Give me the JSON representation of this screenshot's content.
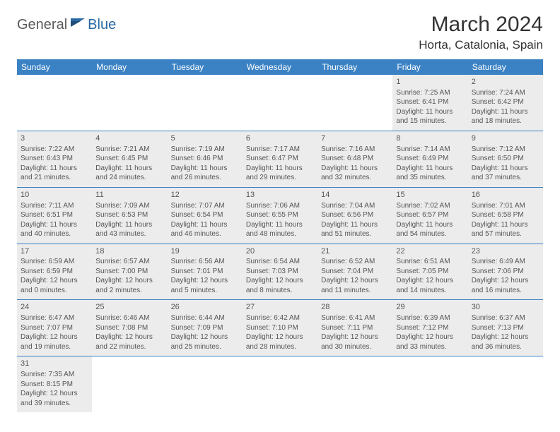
{
  "logo": {
    "part1": "General",
    "part2": "Blue"
  },
  "title": "March 2024",
  "location": "Horta, Catalonia, Spain",
  "colors": {
    "header_bg": "#3b82c4",
    "header_text": "#ffffff",
    "shaded_bg": "#ececec",
    "row_border": "#3b82c4",
    "logo_gray": "#5a5a5a",
    "logo_blue": "#2968a3",
    "text": "#444444"
  },
  "weekdays": [
    "Sunday",
    "Monday",
    "Tuesday",
    "Wednesday",
    "Thursday",
    "Friday",
    "Saturday"
  ],
  "weeks": [
    [
      null,
      null,
      null,
      null,
      null,
      {
        "d": "1",
        "sr": "Sunrise: 7:25 AM",
        "ss": "Sunset: 6:41 PM",
        "dl1": "Daylight: 11 hours",
        "dl2": "and 15 minutes."
      },
      {
        "d": "2",
        "sr": "Sunrise: 7:24 AM",
        "ss": "Sunset: 6:42 PM",
        "dl1": "Daylight: 11 hours",
        "dl2": "and 18 minutes."
      }
    ],
    [
      {
        "d": "3",
        "sr": "Sunrise: 7:22 AM",
        "ss": "Sunset: 6:43 PM",
        "dl1": "Daylight: 11 hours",
        "dl2": "and 21 minutes."
      },
      {
        "d": "4",
        "sr": "Sunrise: 7:21 AM",
        "ss": "Sunset: 6:45 PM",
        "dl1": "Daylight: 11 hours",
        "dl2": "and 24 minutes."
      },
      {
        "d": "5",
        "sr": "Sunrise: 7:19 AM",
        "ss": "Sunset: 6:46 PM",
        "dl1": "Daylight: 11 hours",
        "dl2": "and 26 minutes."
      },
      {
        "d": "6",
        "sr": "Sunrise: 7:17 AM",
        "ss": "Sunset: 6:47 PM",
        "dl1": "Daylight: 11 hours",
        "dl2": "and 29 minutes."
      },
      {
        "d": "7",
        "sr": "Sunrise: 7:16 AM",
        "ss": "Sunset: 6:48 PM",
        "dl1": "Daylight: 11 hours",
        "dl2": "and 32 minutes."
      },
      {
        "d": "8",
        "sr": "Sunrise: 7:14 AM",
        "ss": "Sunset: 6:49 PM",
        "dl1": "Daylight: 11 hours",
        "dl2": "and 35 minutes."
      },
      {
        "d": "9",
        "sr": "Sunrise: 7:12 AM",
        "ss": "Sunset: 6:50 PM",
        "dl1": "Daylight: 11 hours",
        "dl2": "and 37 minutes."
      }
    ],
    [
      {
        "d": "10",
        "sr": "Sunrise: 7:11 AM",
        "ss": "Sunset: 6:51 PM",
        "dl1": "Daylight: 11 hours",
        "dl2": "and 40 minutes."
      },
      {
        "d": "11",
        "sr": "Sunrise: 7:09 AM",
        "ss": "Sunset: 6:53 PM",
        "dl1": "Daylight: 11 hours",
        "dl2": "and 43 minutes."
      },
      {
        "d": "12",
        "sr": "Sunrise: 7:07 AM",
        "ss": "Sunset: 6:54 PM",
        "dl1": "Daylight: 11 hours",
        "dl2": "and 46 minutes."
      },
      {
        "d": "13",
        "sr": "Sunrise: 7:06 AM",
        "ss": "Sunset: 6:55 PM",
        "dl1": "Daylight: 11 hours",
        "dl2": "and 48 minutes."
      },
      {
        "d": "14",
        "sr": "Sunrise: 7:04 AM",
        "ss": "Sunset: 6:56 PM",
        "dl1": "Daylight: 11 hours",
        "dl2": "and 51 minutes."
      },
      {
        "d": "15",
        "sr": "Sunrise: 7:02 AM",
        "ss": "Sunset: 6:57 PM",
        "dl1": "Daylight: 11 hours",
        "dl2": "and 54 minutes."
      },
      {
        "d": "16",
        "sr": "Sunrise: 7:01 AM",
        "ss": "Sunset: 6:58 PM",
        "dl1": "Daylight: 11 hours",
        "dl2": "and 57 minutes."
      }
    ],
    [
      {
        "d": "17",
        "sr": "Sunrise: 6:59 AM",
        "ss": "Sunset: 6:59 PM",
        "dl1": "Daylight: 12 hours",
        "dl2": "and 0 minutes."
      },
      {
        "d": "18",
        "sr": "Sunrise: 6:57 AM",
        "ss": "Sunset: 7:00 PM",
        "dl1": "Daylight: 12 hours",
        "dl2": "and 2 minutes."
      },
      {
        "d": "19",
        "sr": "Sunrise: 6:56 AM",
        "ss": "Sunset: 7:01 PM",
        "dl1": "Daylight: 12 hours",
        "dl2": "and 5 minutes."
      },
      {
        "d": "20",
        "sr": "Sunrise: 6:54 AM",
        "ss": "Sunset: 7:03 PM",
        "dl1": "Daylight: 12 hours",
        "dl2": "and 8 minutes."
      },
      {
        "d": "21",
        "sr": "Sunrise: 6:52 AM",
        "ss": "Sunset: 7:04 PM",
        "dl1": "Daylight: 12 hours",
        "dl2": "and 11 minutes."
      },
      {
        "d": "22",
        "sr": "Sunrise: 6:51 AM",
        "ss": "Sunset: 7:05 PM",
        "dl1": "Daylight: 12 hours",
        "dl2": "and 14 minutes."
      },
      {
        "d": "23",
        "sr": "Sunrise: 6:49 AM",
        "ss": "Sunset: 7:06 PM",
        "dl1": "Daylight: 12 hours",
        "dl2": "and 16 minutes."
      }
    ],
    [
      {
        "d": "24",
        "sr": "Sunrise: 6:47 AM",
        "ss": "Sunset: 7:07 PM",
        "dl1": "Daylight: 12 hours",
        "dl2": "and 19 minutes."
      },
      {
        "d": "25",
        "sr": "Sunrise: 6:46 AM",
        "ss": "Sunset: 7:08 PM",
        "dl1": "Daylight: 12 hours",
        "dl2": "and 22 minutes."
      },
      {
        "d": "26",
        "sr": "Sunrise: 6:44 AM",
        "ss": "Sunset: 7:09 PM",
        "dl1": "Daylight: 12 hours",
        "dl2": "and 25 minutes."
      },
      {
        "d": "27",
        "sr": "Sunrise: 6:42 AM",
        "ss": "Sunset: 7:10 PM",
        "dl1": "Daylight: 12 hours",
        "dl2": "and 28 minutes."
      },
      {
        "d": "28",
        "sr": "Sunrise: 6:41 AM",
        "ss": "Sunset: 7:11 PM",
        "dl1": "Daylight: 12 hours",
        "dl2": "and 30 minutes."
      },
      {
        "d": "29",
        "sr": "Sunrise: 6:39 AM",
        "ss": "Sunset: 7:12 PM",
        "dl1": "Daylight: 12 hours",
        "dl2": "and 33 minutes."
      },
      {
        "d": "30",
        "sr": "Sunrise: 6:37 AM",
        "ss": "Sunset: 7:13 PM",
        "dl1": "Daylight: 12 hours",
        "dl2": "and 36 minutes."
      }
    ],
    [
      {
        "d": "31",
        "sr": "Sunrise: 7:35 AM",
        "ss": "Sunset: 8:15 PM",
        "dl1": "Daylight: 12 hours",
        "dl2": "and 39 minutes."
      },
      null,
      null,
      null,
      null,
      null,
      null
    ]
  ]
}
